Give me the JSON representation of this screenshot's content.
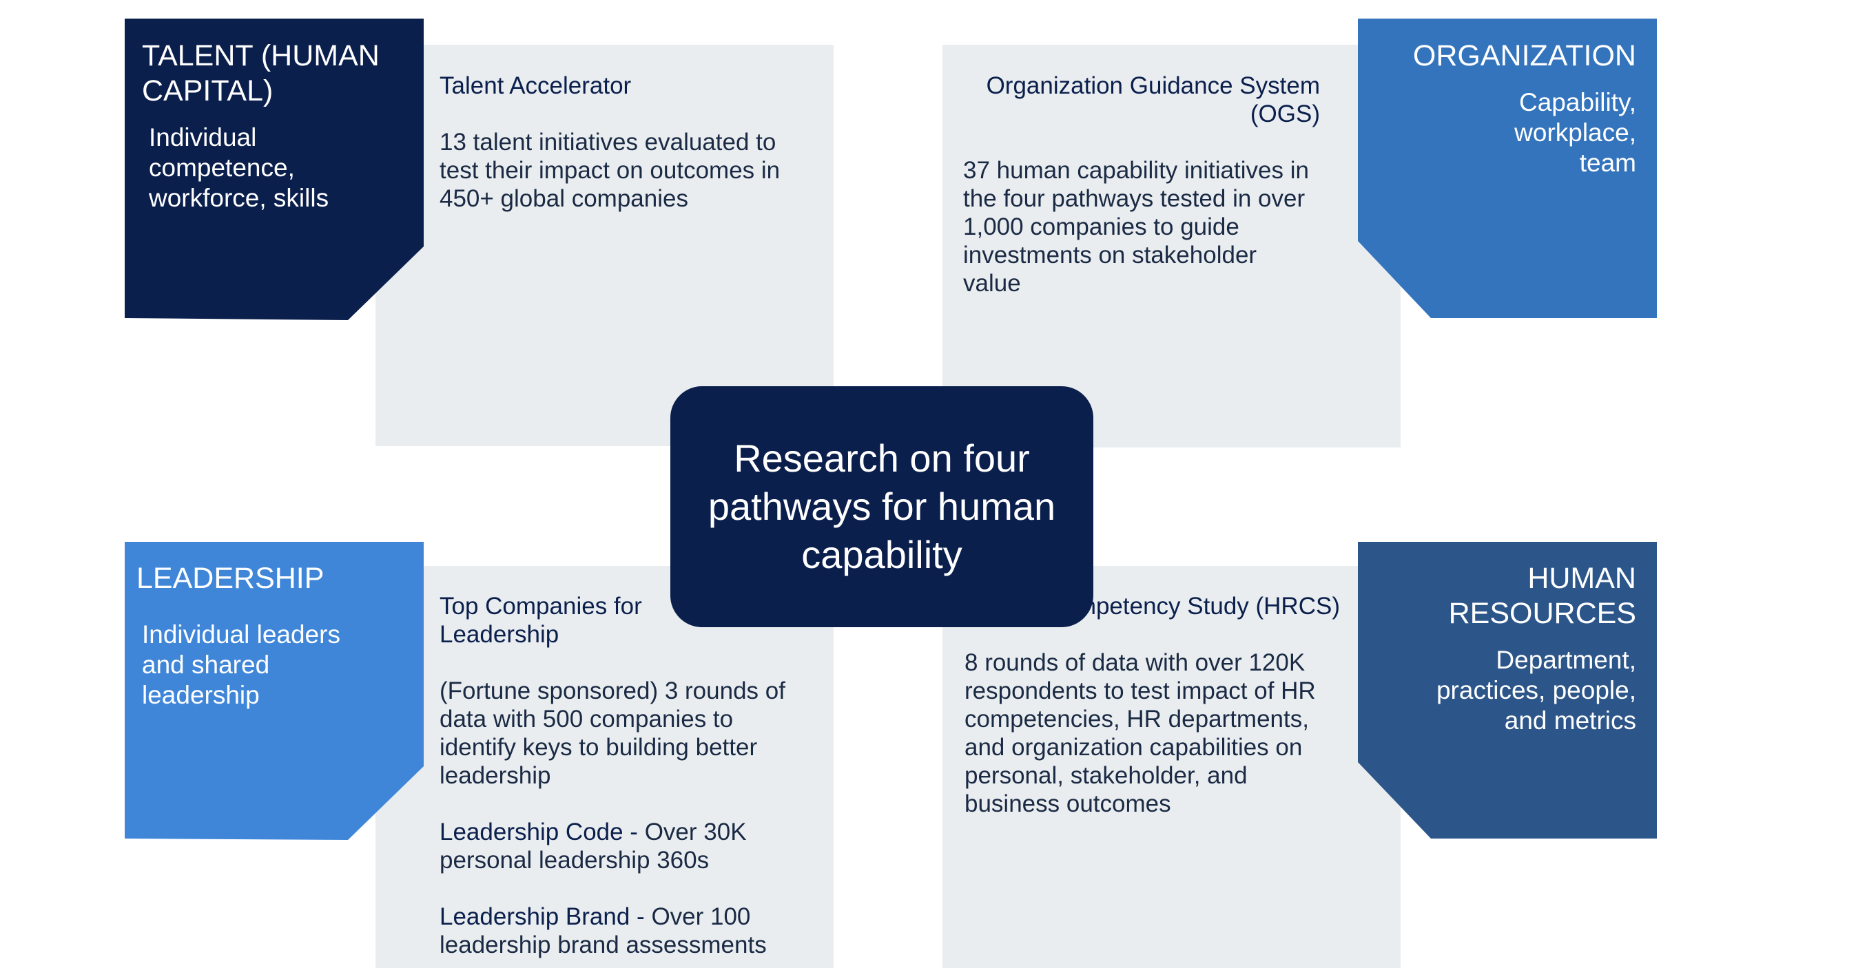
{
  "center": {
    "title": "Research on four pathways for human capability"
  },
  "colors": {
    "talent": "#0b1f4d",
    "organization": "#3474bd",
    "leadership": "#3f86d9",
    "hr": "#2c5689",
    "panel": "#e9edef"
  },
  "talent": {
    "heading": "TALENT (HUMAN CAPITAL)",
    "description": "Individual competence, workforce, skills",
    "panel_title": "Talent Accelerator",
    "panel_body": "13 talent initiatives evaluated to test their impact on outcomes in 450+ global companies"
  },
  "organization": {
    "heading": "ORGANIZATION",
    "description": "Capability, workplace, team",
    "panel_title": "Organization Guidance System (OGS)",
    "panel_body": "37 human capability initiatives in the four pathways tested in over 1,000 companies to guide investments on stakeholder value"
  },
  "leadership": {
    "heading": "LEADERSHIP",
    "description": "Individual leaders and shared leadership",
    "panel_title": "Top Companies for Leadership",
    "panel_body": "(Fortune sponsored) 3 rounds of data with 500 companies to identify keys to building better leadership",
    "code_label": "Leadership Code -",
    "code_text": "Over 30K personal leadership 360s",
    "brand_label": "Leadership Brand -",
    "brand_text": "Over 100 leadership brand assessments"
  },
  "hr": {
    "heading": "HUMAN RESOURCES",
    "description": "Department, practices, people, and metrics",
    "panel_title": "HR Competency Study (HRCS)",
    "panel_body": "8 rounds of data with over 120K respondents to test impact of HR competencies, HR departments, and organization capabilities on personal, stakeholder, and business outcomes"
  }
}
